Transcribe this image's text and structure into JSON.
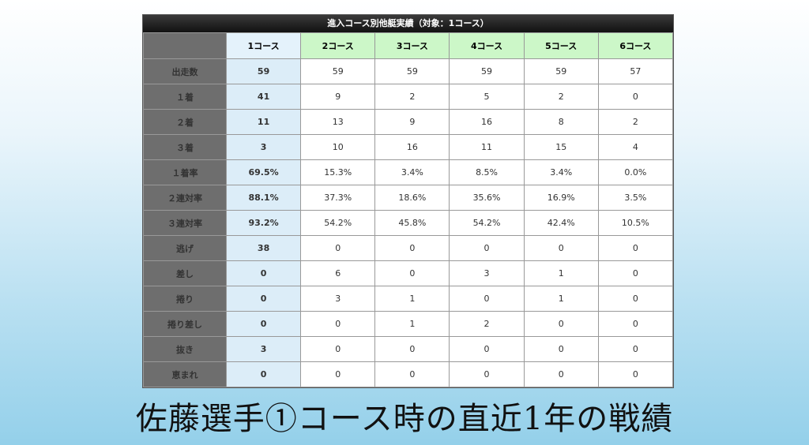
{
  "table": {
    "title": "進入コース別他艇実績（対象：1コース）",
    "columns": [
      "1コース",
      "2コース",
      "3コース",
      "4コース",
      "5コース",
      "6コース"
    ],
    "rows": [
      {
        "label": "出走数",
        "values": [
          "59",
          "59",
          "59",
          "59",
          "59",
          "57"
        ]
      },
      {
        "label": "１着",
        "values": [
          "41",
          "9",
          "2",
          "5",
          "2",
          "0"
        ]
      },
      {
        "label": "２着",
        "values": [
          "11",
          "13",
          "9",
          "16",
          "8",
          "2"
        ]
      },
      {
        "label": "３着",
        "values": [
          "3",
          "10",
          "16",
          "11",
          "15",
          "4"
        ]
      },
      {
        "label": "１着率",
        "values": [
          "69.5%",
          "15.3%",
          "3.4%",
          "8.5%",
          "3.4%",
          "0.0%"
        ]
      },
      {
        "label": "２連対率",
        "values": [
          "88.1%",
          "37.3%",
          "18.6%",
          "35.6%",
          "16.9%",
          "3.5%"
        ]
      },
      {
        "label": "３連対率",
        "values": [
          "93.2%",
          "54.2%",
          "45.8%",
          "54.2%",
          "42.4%",
          "10.5%"
        ]
      },
      {
        "label": "逃げ",
        "values": [
          "38",
          "0",
          "0",
          "0",
          "0",
          "0"
        ]
      },
      {
        "label": "差し",
        "values": [
          "0",
          "6",
          "0",
          "3",
          "1",
          "0"
        ]
      },
      {
        "label": "捲り",
        "values": [
          "0",
          "3",
          "1",
          "0",
          "1",
          "0"
        ]
      },
      {
        "label": "捲り差し",
        "values": [
          "0",
          "0",
          "1",
          "2",
          "0",
          "0"
        ]
      },
      {
        "label": "抜き",
        "values": [
          "3",
          "0",
          "0",
          "0",
          "0",
          "0"
        ]
      },
      {
        "label": "恵まれ",
        "values": [
          "0",
          "0",
          "0",
          "0",
          "0",
          "0"
        ]
      }
    ]
  },
  "caption": "佐藤選手①コース時の直近1年の戦績",
  "colors": {
    "header_bar": "#111111",
    "row_header_bg": "#6e6e6e",
    "course1_bg": "#dcedf8",
    "other_course_header_bg": "#ccf7c8"
  }
}
